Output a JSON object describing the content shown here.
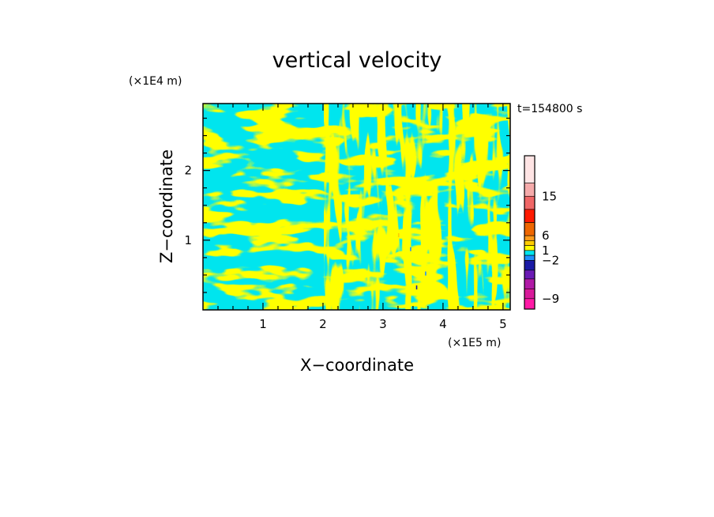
{
  "chart_data": {
    "type": "heatmap",
    "title": "vertical velocity",
    "xlabel": "X−coordinate",
    "ylabel": "Z−coordinate",
    "x_unit": "(×1E5 m)",
    "y_unit": "(×1E4 m)",
    "time_label": "t=154800 s",
    "xlim": [
      0,
      5.12
    ],
    "ylim": [
      0,
      2.96
    ],
    "x_ticks": [
      1,
      2,
      3,
      4,
      5
    ],
    "y_ticks": [
      1,
      2
    ],
    "grid": false,
    "colorbar": {
      "ticks": [
        "15",
        "6",
        "1",
        "−2",
        "−9"
      ],
      "tick_values": [
        15,
        6,
        1,
        -2,
        -9
      ],
      "levels": [
        {
          "color": "#ffe4e4"
        },
        {
          "color": "#f5aaaa"
        },
        {
          "color": "#f06666"
        },
        {
          "color": "#ff1a00"
        },
        {
          "color": "#ee6600"
        },
        {
          "color": "#ff9a1a"
        },
        {
          "color": "#ffcc00"
        },
        {
          "color": "#ffff00"
        },
        {
          "color": "#00e5ee"
        },
        {
          "color": "#1f90ff"
        },
        {
          "color": "#1a1aa6"
        },
        {
          "color": "#6a1ab4"
        },
        {
          "color": "#b01aa6"
        },
        {
          "color": "#d81a9a"
        },
        {
          "color": "#ff1aa6"
        }
      ]
    },
    "field": {
      "description_of_values": "vertical velocity sign pattern",
      "positive_color": "#ffff00",
      "negative_color": "#00e5ee",
      "minor_colors": [
        "#1f90ff",
        "#1a1aa6",
        "#ffcc00"
      ]
    }
  }
}
